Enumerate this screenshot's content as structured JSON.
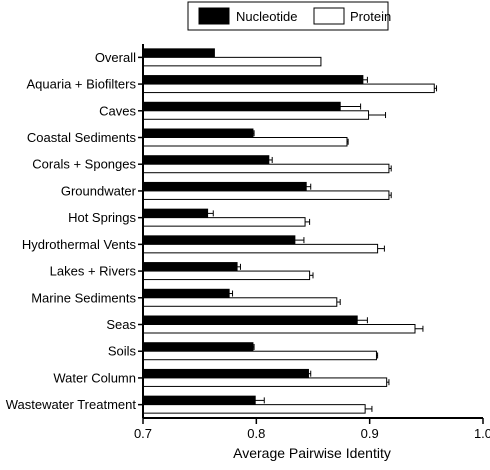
{
  "chart_data": {
    "type": "bar",
    "orientation": "horizontal",
    "title": "",
    "xlabel": "Average Pairwise Identity",
    "ylabel": "",
    "xlim": [
      0.7,
      1.0
    ],
    "xticks": [
      "0.7",
      "0.8",
      "0.9",
      "1.0"
    ],
    "grid": false,
    "legend_position": "top-center",
    "categories": [
      "Overall",
      "Aquaria + Biofilters",
      "Caves",
      "Coastal Sediments",
      "Corals + Sponges",
      "Groundwater",
      "Hot Springs",
      "Hydrothermal Vents",
      "Lakes + Rivers",
      "Marine Sediments",
      "Seas",
      "Soils",
      "Water Column",
      "Wastewater Treatment"
    ],
    "series": [
      {
        "name": "Nucleotide",
        "color": "#000000",
        "values": [
          0.763,
          0.894,
          0.874,
          0.797,
          0.811,
          0.844,
          0.757,
          0.834,
          0.783,
          0.776,
          0.889,
          0.797,
          0.846,
          0.799
        ],
        "errors": [
          0.0,
          0.004,
          0.018,
          0.001,
          0.003,
          0.004,
          0.005,
          0.008,
          0.003,
          0.003,
          0.009,
          0.001,
          0.002,
          0.008
        ]
      },
      {
        "name": "Protein",
        "color": "#ffffff",
        "values": [
          0.857,
          0.957,
          0.899,
          0.88,
          0.917,
          0.917,
          0.843,
          0.907,
          0.847,
          0.871,
          0.94,
          0.906,
          0.915,
          0.896
        ],
        "errors": [
          0.0,
          0.002,
          0.015,
          0.001,
          0.002,
          0.002,
          0.004,
          0.006,
          0.003,
          0.003,
          0.007,
          0.001,
          0.002,
          0.006
        ]
      }
    ]
  }
}
